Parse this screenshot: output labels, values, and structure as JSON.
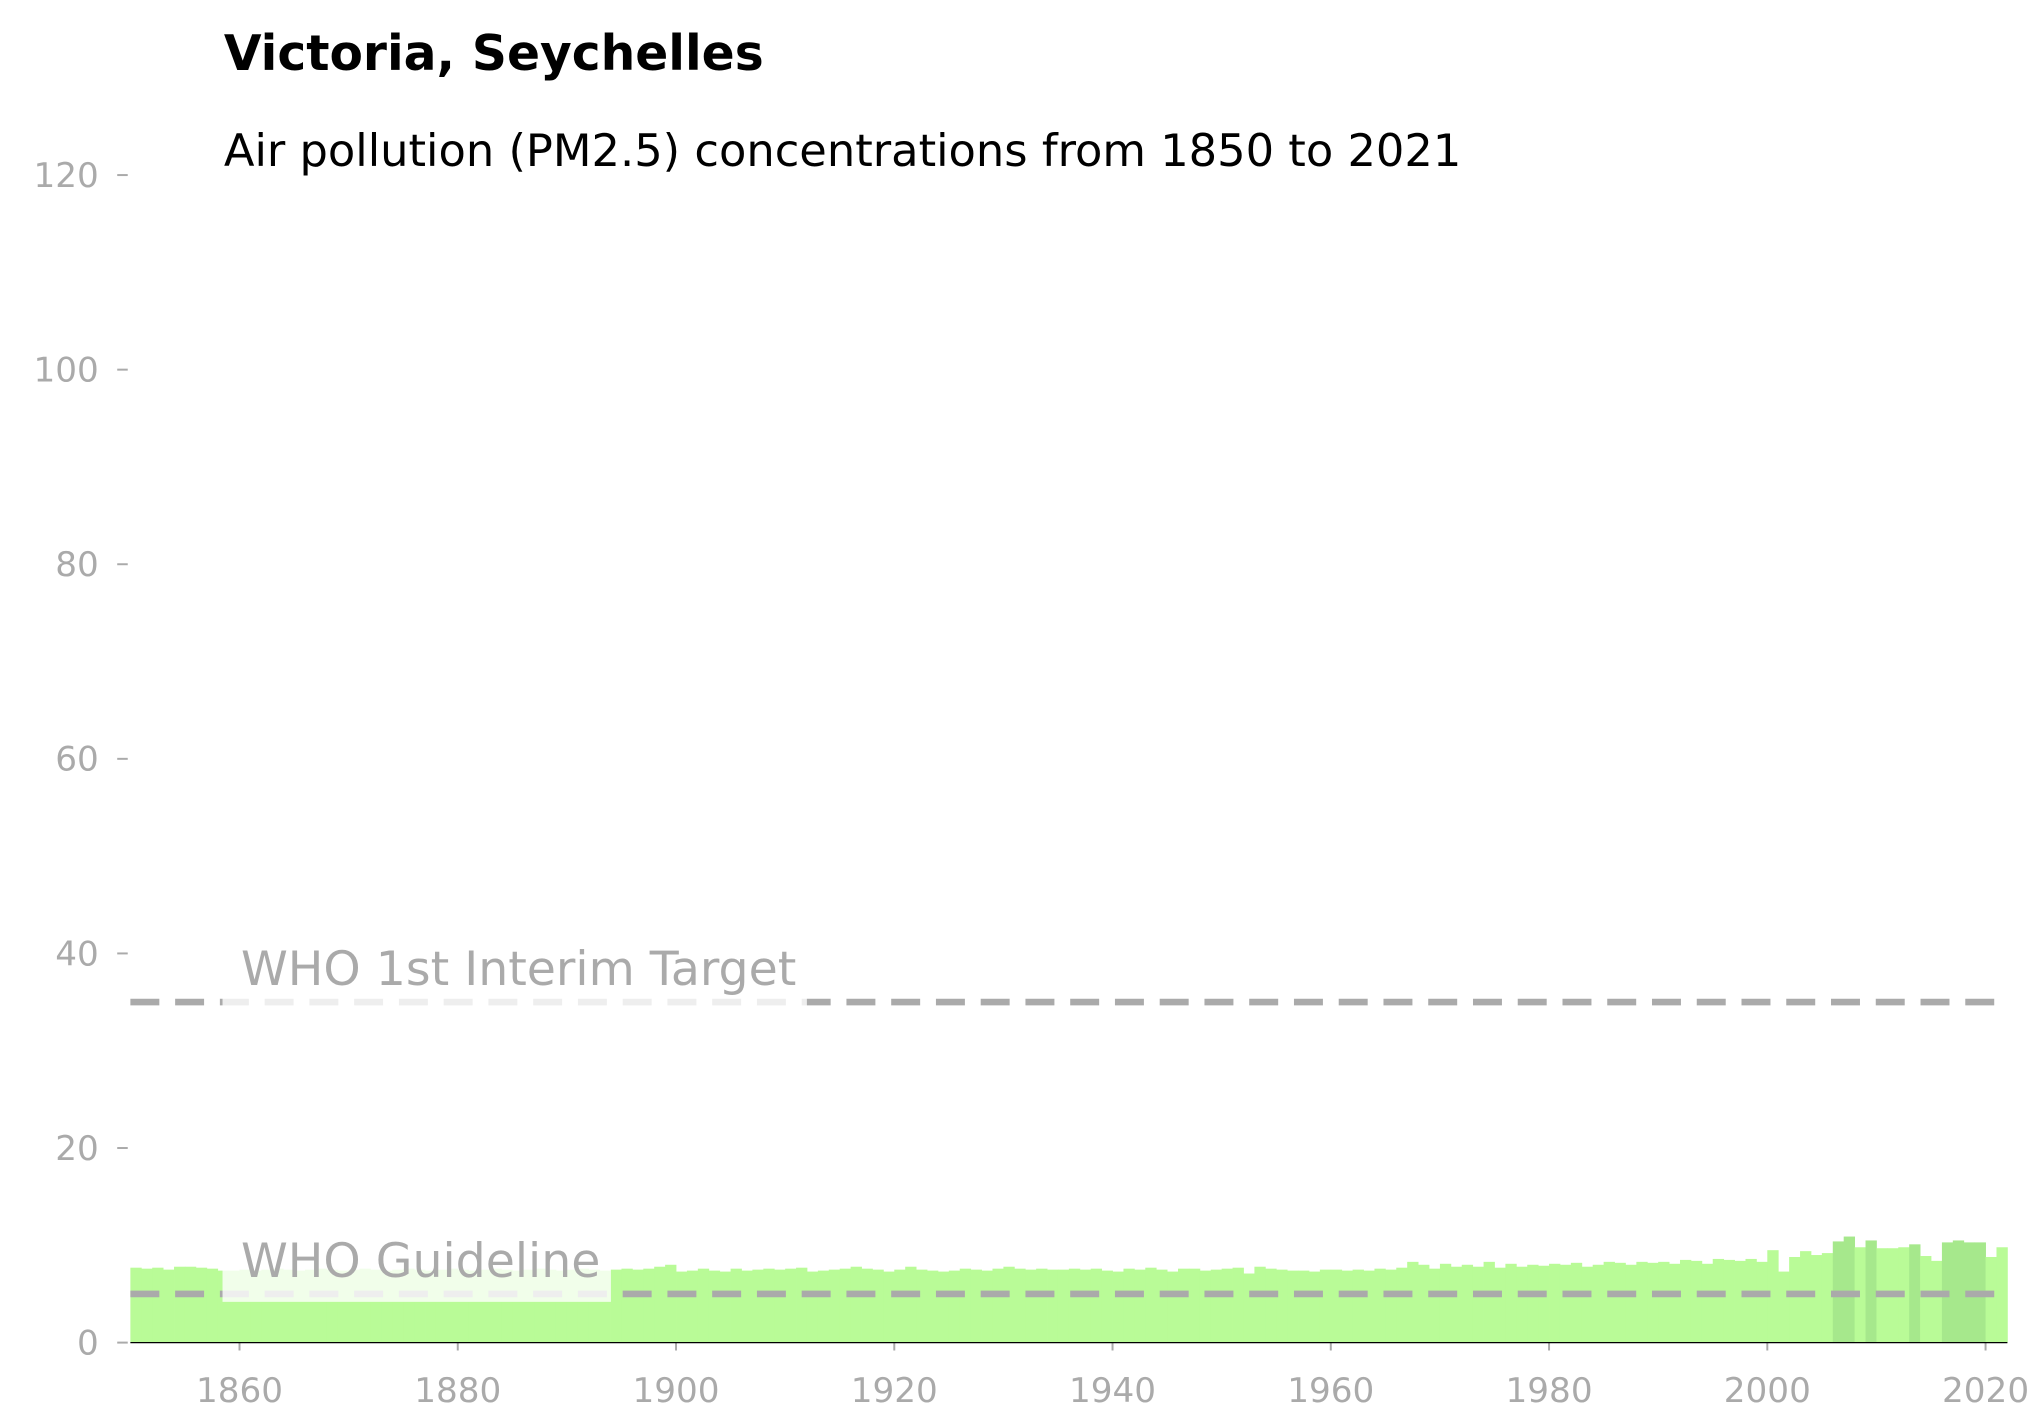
{
  "chart_data": {
    "type": "bar",
    "title": "Victoria, Seychelles",
    "subtitle": "Air pollution (PM2.5) concentrations from 1850 to 2021",
    "x": [
      1850,
      1851,
      1852,
      1853,
      1854,
      1855,
      1856,
      1857,
      1858,
      1859,
      1860,
      1861,
      1862,
      1863,
      1864,
      1865,
      1866,
      1867,
      1868,
      1869,
      1870,
      1871,
      1872,
      1873,
      1874,
      1875,
      1876,
      1877,
      1878,
      1879,
      1880,
      1881,
      1882,
      1883,
      1884,
      1885,
      1886,
      1887,
      1888,
      1889,
      1890,
      1891,
      1892,
      1893,
      1894,
      1895,
      1896,
      1897,
      1898,
      1899,
      1900,
      1901,
      1902,
      1903,
      1904,
      1905,
      1906,
      1907,
      1908,
      1909,
      1910,
      1911,
      1912,
      1913,
      1914,
      1915,
      1916,
      1917,
      1918,
      1919,
      1920,
      1921,
      1922,
      1923,
      1924,
      1925,
      1926,
      1927,
      1928,
      1929,
      1930,
      1931,
      1932,
      1933,
      1934,
      1935,
      1936,
      1937,
      1938,
      1939,
      1940,
      1941,
      1942,
      1943,
      1944,
      1945,
      1946,
      1947,
      1948,
      1949,
      1950,
      1951,
      1952,
      1953,
      1954,
      1955,
      1956,
      1957,
      1958,
      1959,
      1960,
      1961,
      1962,
      1963,
      1964,
      1965,
      1966,
      1967,
      1968,
      1969,
      1970,
      1971,
      1972,
      1973,
      1974,
      1975,
      1976,
      1977,
      1978,
      1979,
      1980,
      1981,
      1982,
      1983,
      1984,
      1985,
      1986,
      1987,
      1988,
      1989,
      1990,
      1991,
      1992,
      1993,
      1994,
      1995,
      1996,
      1997,
      1998,
      1999,
      2000,
      2001,
      2002,
      2003,
      2004,
      2005,
      2006,
      2007,
      2008,
      2009,
      2010,
      2011,
      2012,
      2013,
      2014,
      2015,
      2016,
      2017,
      2018,
      2019,
      2020,
      2021
    ],
    "values": [
      7.7,
      7.6,
      7.7,
      7.5,
      7.8,
      7.8,
      7.7,
      7.6,
      7.4,
      7.4,
      7.5,
      7.4,
      7.5,
      7.6,
      7.5,
      7.4,
      7.5,
      7.6,
      7.5,
      7.4,
      7.5,
      7.6,
      7.5,
      7.4,
      7.5,
      7.6,
      7.5,
      7.4,
      7.5,
      7.6,
      7.5,
      7.4,
      7.5,
      7.6,
      7.5,
      7.4,
      7.5,
      7.6,
      7.5,
      7.4,
      7.5,
      7.6,
      7.5,
      7.4,
      7.5,
      7.6,
      7.5,
      7.6,
      7.8,
      8.0,
      7.3,
      7.4,
      7.6,
      7.4,
      7.3,
      7.6,
      7.4,
      7.5,
      7.6,
      7.5,
      7.6,
      7.7,
      7.3,
      7.4,
      7.5,
      7.6,
      7.8,
      7.6,
      7.5,
      7.3,
      7.5,
      7.8,
      7.5,
      7.4,
      7.3,
      7.4,
      7.6,
      7.5,
      7.4,
      7.6,
      7.8,
      7.6,
      7.5,
      7.6,
      7.5,
      7.5,
      7.6,
      7.5,
      7.6,
      7.4,
      7.3,
      7.6,
      7.5,
      7.7,
      7.5,
      7.3,
      7.6,
      7.6,
      7.4,
      7.5,
      7.6,
      7.7,
      7.1,
      7.8,
      7.6,
      7.5,
      7.4,
      7.4,
      7.3,
      7.5,
      7.5,
      7.4,
      7.5,
      7.4,
      7.6,
      7.5,
      7.7,
      8.3,
      8.0,
      7.6,
      8.1,
      7.8,
      8.0,
      7.8,
      8.3,
      7.7,
      8.1,
      7.8,
      8.0,
      7.9,
      8.1,
      8.0,
      8.2,
      7.8,
      8.0,
      8.3,
      8.2,
      8.0,
      8.3,
      8.2,
      8.3,
      8.1,
      8.5,
      8.4,
      8.1,
      8.6,
      8.5,
      8.4,
      8.6,
      8.3,
      9.5,
      7.3,
      8.8,
      9.4,
      9.0,
      9.2,
      10.4,
      10.9,
      9.8,
      10.5,
      9.7,
      9.7,
      9.8,
      10.1,
      8.9,
      8.4,
      10.3,
      10.5,
      10.3,
      10.3,
      8.8,
      9.8
    ],
    "colors": [
      "#b9fb97",
      "#b9fb97",
      "#b9fb97",
      "#b9fb97",
      "#b9fb97",
      "#b9fb97",
      "#b9fb97",
      "#b9fb97",
      "#b9fb97",
      "#b9fb97",
      "#b9fb97",
      "#b9fb97",
      "#b9fb97",
      "#b9fb97",
      "#b9fb97",
      "#b9fb97",
      "#b9fb97",
      "#b9fb97",
      "#b9fb97",
      "#b9fb97",
      "#b9fb97",
      "#b9fb97",
      "#b9fb97",
      "#b9fb97",
      "#b9fb97",
      "#b9fb97",
      "#b9fb97",
      "#b9fb97",
      "#b9fb97",
      "#b9fb97",
      "#b9fb97",
      "#b9fb97",
      "#b9fb97",
      "#b9fb97",
      "#b9fb97",
      "#b9fb97",
      "#b9fb97",
      "#b9fb97",
      "#b9fb97",
      "#b9fb97",
      "#b9fb97",
      "#b9fb97",
      "#b9fb97",
      "#b9fb97",
      "#b9fb97",
      "#b9fb97",
      "#b9fb97",
      "#b9fb97",
      "#b9fb97",
      "#b9fb97",
      "#b9fb97",
      "#b9fb97",
      "#b9fb97",
      "#b9fb97",
      "#b9fb97",
      "#b9fb97",
      "#b9fb97",
      "#b9fb97",
      "#b9fb97",
      "#b9fb97",
      "#b9fb97",
      "#b9fb97",
      "#b9fb97",
      "#b9fb97",
      "#b9fb97",
      "#b9fb97",
      "#b9fb97",
      "#b9fb97",
      "#b9fb97",
      "#b9fb97",
      "#b9fb97",
      "#b9fb97",
      "#b9fb97",
      "#b9fb97",
      "#b9fb97",
      "#b9fb97",
      "#b9fb97",
      "#b9fb97",
      "#b9fb97",
      "#b9fb97",
      "#b9fb97",
      "#b9fb97",
      "#b9fb97",
      "#b9fb97",
      "#b9fb97",
      "#b9fb97",
      "#b9fb97",
      "#b9fb97",
      "#b9fb97",
      "#b9fb97",
      "#b9fb97",
      "#b9fb97",
      "#b9fb97",
      "#b9fb97",
      "#b9fb97",
      "#b9fb97",
      "#b9fb97",
      "#b9fb97",
      "#b9fb97",
      "#b9fb97",
      "#b9fb97",
      "#b9fb97",
      "#b9fb97",
      "#b9fb97",
      "#b9fb97",
      "#b9fb97",
      "#b9fb97",
      "#b9fb97",
      "#b9fb97",
      "#b9fb97",
      "#b9fb97",
      "#b9fb97",
      "#b9fb97",
      "#b9fb97",
      "#b9fb97",
      "#b9fb97",
      "#b9fb97",
      "#b9fb97",
      "#b9fb97",
      "#b9fb97",
      "#b9fb97",
      "#b9fb97",
      "#b9fb97",
      "#b9fb97",
      "#b9fb97",
      "#b9fb97",
      "#b9fb97",
      "#b9fb97",
      "#b9fb97",
      "#b9fb97",
      "#b9fb97",
      "#b9fb97",
      "#b9fb97",
      "#b9fb97",
      "#b9fb97",
      "#b9fb97",
      "#b9fb97",
      "#b9fb97",
      "#b9fb97",
      "#b9fb97",
      "#b9fb97",
      "#b9fb97",
      "#b9fb97",
      "#b9fb97",
      "#b9fb97",
      "#b9fb97",
      "#b9fb97",
      "#b9fb97",
      "#b9fb97",
      "#b9fb97",
      "#b9fb97",
      "#b9fb97",
      "#b9fb97",
      "#b9fb97",
      "#b9fb97",
      "#b9fb97",
      "#a6e88c",
      "#a6e88c",
      "#b9fb97",
      "#a6e88c",
      "#b9fb97",
      "#b9fb97",
      "#b9fb97",
      "#a6e88c",
      "#b9fb97",
      "#b9fb97",
      "#a6e88c",
      "#a6e88c",
      "#a6e88c",
      "#a6e88c",
      "#b9fb97",
      "#b9fb97"
    ],
    "xlim": [
      1850,
      2022
    ],
    "xticks": [
      1860,
      1880,
      1900,
      1920,
      1940,
      1960,
      1980,
      2000,
      2020
    ],
    "ylim": [
      0,
      120
    ],
    "yticks": [
      0,
      20,
      40,
      60,
      80,
      100,
      120
    ],
    "reference_lines": [
      {
        "value": 35,
        "label": "WHO 1st Interim Target"
      },
      {
        "value": 5,
        "label": "WHO Guideline"
      }
    ],
    "reference_color": "#aaaaaa"
  }
}
